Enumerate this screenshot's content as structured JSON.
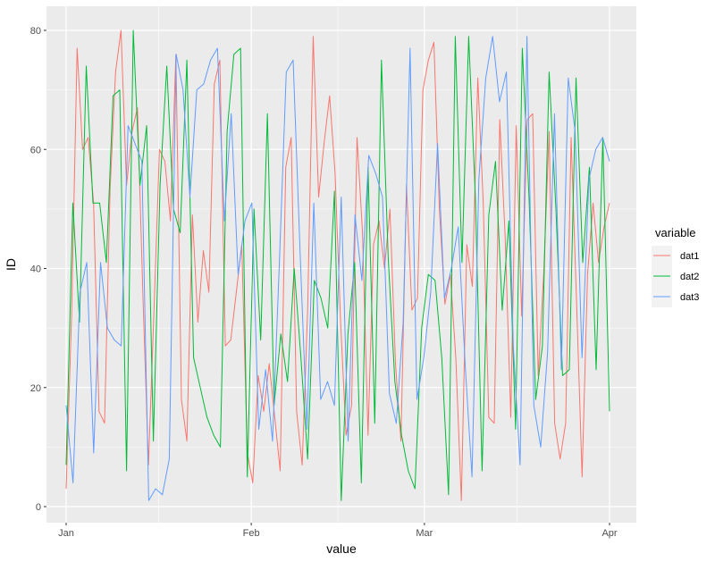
{
  "chart_data": {
    "type": "line",
    "xlabel": "value",
    "ylabel": "ID",
    "x_axis_type": "date",
    "xlim": [
      "2000-01-01",
      "2000-04-01"
    ],
    "ylim": [
      0,
      80
    ],
    "x_tick_labels": [
      {
        "date": "2000-01-01",
        "label": "Jan"
      },
      {
        "date": "2000-02-01",
        "label": "Feb"
      },
      {
        "date": "2000-03-01",
        "label": "Mar"
      },
      {
        "date": "2000-04-01",
        "label": "Apr"
      }
    ],
    "y_ticks": [
      0,
      20,
      40,
      60,
      80
    ],
    "grid": true,
    "panel_background": "#ebebeb",
    "legend": {
      "title": "variable",
      "position": "right"
    },
    "series": [
      {
        "name": "dat1",
        "color": "#F8766D",
        "values": [
          3,
          32,
          77,
          60,
          62,
          51,
          16,
          14,
          53,
          73,
          80,
          54,
          63,
          67,
          35,
          7,
          33,
          60,
          58,
          48,
          76,
          18,
          11,
          49,
          31,
          43,
          36,
          71,
          75,
          27,
          28,
          36,
          44,
          9,
          4,
          22,
          16,
          24,
          15,
          6,
          57,
          62,
          16,
          7,
          33,
          79,
          52,
          61,
          69,
          56,
          31,
          12,
          17,
          62,
          46,
          12,
          44,
          48,
          40,
          50,
          24,
          11,
          54,
          33,
          35,
          70,
          75,
          78,
          50,
          34,
          39,
          25,
          1,
          44,
          37,
          72,
          51,
          15,
          14,
          65,
          45,
          15,
          64,
          32,
          65,
          66,
          22,
          39,
          63,
          14,
          8,
          14,
          62,
          34,
          5,
          39,
          51,
          41,
          47,
          51
        ]
      },
      {
        "name": "dat2",
        "color": "#00BA38",
        "values": [
          7,
          51,
          31,
          74,
          51,
          51,
          41,
          69,
          70,
          6,
          80,
          54,
          64,
          11,
          54,
          74,
          50,
          46,
          75,
          25,
          20,
          15,
          12,
          10,
          63,
          76,
          77,
          5,
          50,
          28,
          66,
          17,
          29,
          21,
          40,
          25,
          8,
          38,
          35,
          30,
          53,
          1,
          29,
          41,
          4,
          57,
          14,
          75,
          42,
          21,
          12,
          6,
          3,
          30,
          39,
          38,
          25,
          2,
          79,
          41,
          79,
          52,
          6,
          49,
          58,
          33,
          48,
          13,
          77,
          52,
          18,
          27,
          73,
          50,
          22,
          23,
          72,
          41,
          57,
          23,
          62,
          16
        ]
      },
      {
        "name": "dat3",
        "color": "#619CFF",
        "values": [
          17,
          4,
          36,
          41,
          9,
          41,
          30,
          28,
          27,
          64,
          61,
          58,
          1,
          3,
          2,
          8,
          76,
          70,
          52,
          70,
          71,
          75,
          77,
          48,
          66,
          39,
          48,
          51,
          13,
          23,
          11,
          41,
          73,
          75,
          43,
          13,
          51,
          18,
          21,
          17,
          52,
          11,
          49,
          38,
          59,
          56,
          52,
          19,
          14,
          31,
          77,
          18,
          25,
          36,
          61,
          35,
          40,
          47,
          24,
          5,
          55,
          72,
          79,
          68,
          73,
          27,
          7,
          79,
          17,
          10,
          26,
          66,
          23,
          72,
          63,
          25,
          55,
          60,
          62,
          58
        ]
      }
    ]
  }
}
